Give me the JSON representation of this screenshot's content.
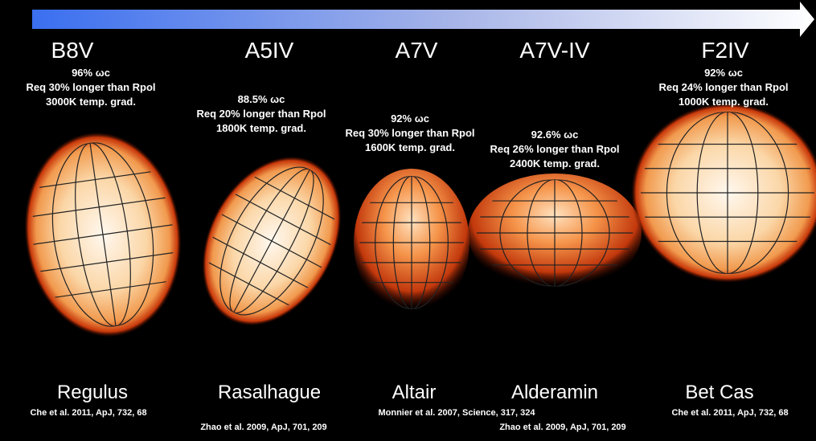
{
  "stars": [
    {
      "type": "B8V",
      "stats": [
        "96% ωc",
        "Req 30% longer than Rpol",
        "3000K temp. grad."
      ],
      "name": "Regulus",
      "citation": "Che et al. 2011, ApJ, 732, 68"
    },
    {
      "type": "A5IV",
      "stats": [
        "88.5% ωc",
        "Req 20% longer than Rpol",
        "1800K temp. grad."
      ],
      "name": "Rasalhague",
      "citation": "Zhao et al. 2009, ApJ, 701, 209"
    },
    {
      "type": "A7V",
      "stats": [
        "92% ωc",
        "Req 30% longer than Rpol",
        "1600K temp. grad."
      ],
      "name": "Altair",
      "citation": "Monnier et  al. 2007, Science, 317, 324"
    },
    {
      "type": "A7V-IV",
      "stats": [
        "92.6% ωc",
        "Req 26% longer than Rpol",
        "2400K temp. grad."
      ],
      "name": "Alderamin",
      "citation": "Zhao et al. 2009, ApJ, 701, 209"
    },
    {
      "type": "F2IV",
      "stats": [
        "92% ωc",
        "Req 24% longer than Rpol",
        "1000K temp. grad."
      ],
      "name": "Bet Cas",
      "citation": "Che et al. 2011, ApJ, 732, 68"
    }
  ]
}
